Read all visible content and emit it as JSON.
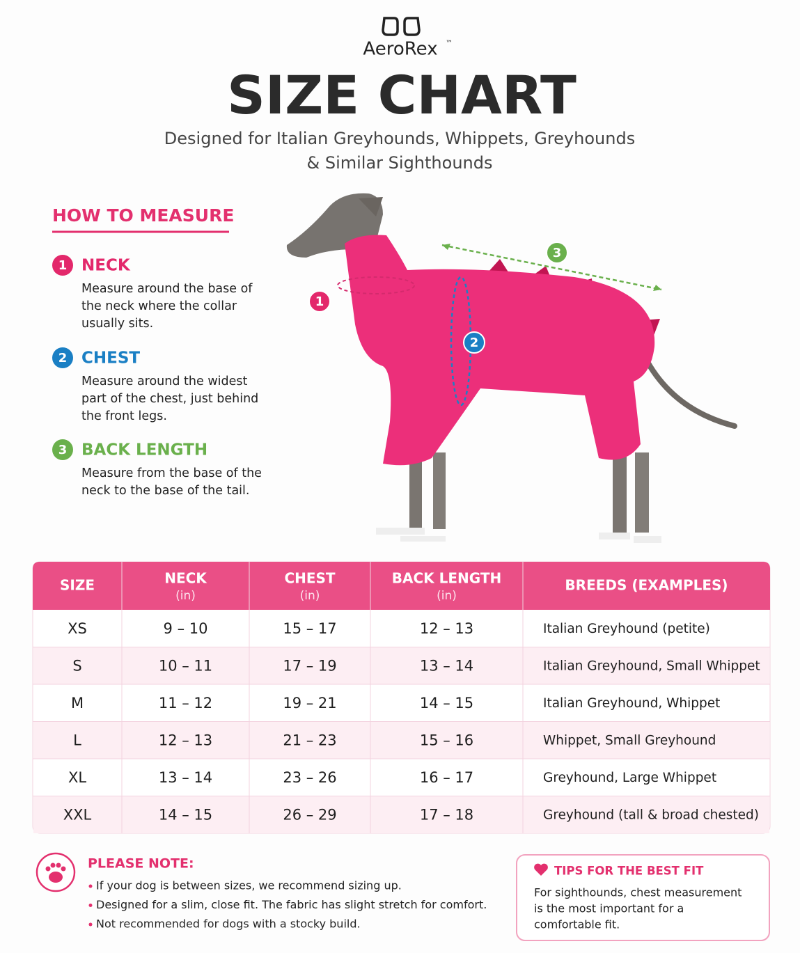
{
  "header": {
    "brand": "AeroRex",
    "trademark": "™",
    "title": "SIZE CHART",
    "subtitle_lines": [
      "Designed for Italian Greyhounds, Whippets, Greyhounds",
      "& Similar Sighthounds"
    ]
  },
  "measure": {
    "heading": "HOW TO MEASURE",
    "steps": [
      {
        "number": "1",
        "label": "NECK",
        "lines": [
          "Measure around the base of",
          "the neck where the collar",
          "usually sits."
        ]
      },
      {
        "number": "2",
        "label": "CHEST",
        "lines": [
          "Measure around the widest",
          "part of the chest, just behind",
          "the front legs."
        ]
      },
      {
        "number": "3",
        "label": "BACK LENGTH",
        "lines": [
          "Measure from the base of the",
          "neck to the base of the tail."
        ]
      }
    ]
  },
  "table": {
    "columns": [
      {
        "label": "SIZE"
      },
      {
        "label": "NECK",
        "unit": "(in)"
      },
      {
        "label": "CHEST",
        "unit": "(in)"
      },
      {
        "label": "BACK LENGTH",
        "unit": "(in)"
      },
      {
        "label": "BREEDS (EXAMPLES)"
      }
    ],
    "rows": [
      [
        "XS",
        "9 – 10",
        "15 – 17",
        "12 – 13",
        "Italian Greyhound (petite)"
      ],
      [
        "S",
        "10 – 11",
        "17 – 19",
        "13 – 14",
        "Italian Greyhound, Small Whippet"
      ],
      [
        "M",
        "11 – 12",
        "19 – 21",
        "14 – 15",
        "Italian Greyhound, Whippet"
      ],
      [
        "L",
        "12 – 13",
        "21 – 23",
        "15 – 16",
        "Whippet, Small Greyhound"
      ],
      [
        "XL",
        "13 – 14",
        "23 – 26",
        "16 – 17",
        "Greyhound, Large Whippet"
      ],
      [
        "XXL",
        "14 – 15",
        "26 – 29",
        "17 – 18",
        "Greyhound (tall & broad chested)"
      ]
    ]
  },
  "note": {
    "heading": "PLEASE NOTE:",
    "items": [
      "If your dog is between sizes, we recommend sizing up.",
      "Designed for a slim, close fit. The fabric has slight stretch for comfort.",
      "Not recommended for dogs with a stocky build."
    ]
  },
  "tips": {
    "heading": "TIPS FOR THE BEST FIT",
    "lines": [
      "For sighthounds, chest measurement",
      "is the most important for a",
      "comfortable fit."
    ]
  }
}
